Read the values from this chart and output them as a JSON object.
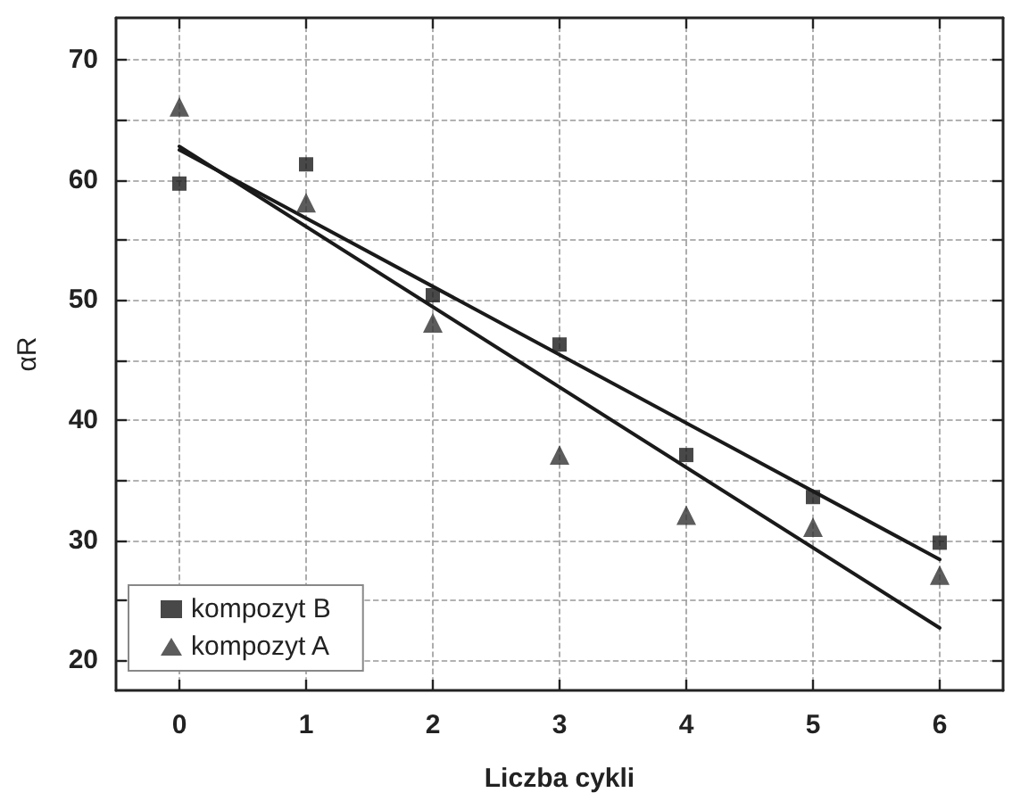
{
  "chart_data": {
    "type": "scatter",
    "xlabel": "Liczba cykli",
    "ylabel": "αR",
    "xlim": [
      -0.5,
      6.5
    ],
    "xticks": [
      0,
      1,
      2,
      3,
      4,
      5,
      6
    ],
    "ylim": [
      17.5,
      73.5
    ],
    "yticks": [
      20,
      {
        "value": 25,
        "label": null
      },
      30,
      {
        "value": 35,
        "label": null
      },
      40,
      {
        "value": 45,
        "label": null
      },
      50,
      {
        "value": 55,
        "label": null
      },
      60,
      {
        "value": 65,
        "label": null
      },
      70
    ],
    "grid": true,
    "legend": "bottom left",
    "series": [
      {
        "name": "kompozyt B",
        "color": "#1a1a1a",
        "marker": "square",
        "x": [
          0,
          1,
          2,
          3,
          4,
          5,
          6
        ],
        "values": [
          59.7,
          61.3,
          50.4,
          46.3,
          37.1,
          33.6,
          29.8
        ]
      },
      {
        "name": "kompozyt A",
        "color": "#333333",
        "marker": "triangle",
        "x": [
          0,
          1,
          2,
          3,
          4,
          5,
          6
        ],
        "values": [
          66.1,
          58.1,
          48.1,
          37.1,
          32.1,
          31.1,
          27.1
        ]
      },
      {
        "type": "line",
        "color": "#1a1a1a",
        "marker": "none",
        "line_style": "solid",
        "x": [
          0,
          6
        ],
        "values": [
          62.5,
          28.4
        ]
      },
      {
        "type": "line",
        "color": "#1a1a1a",
        "marker": "none",
        "line_style": "solid",
        "x": [
          0,
          6
        ],
        "values": [
          62.8,
          22.7
        ]
      }
    ]
  }
}
